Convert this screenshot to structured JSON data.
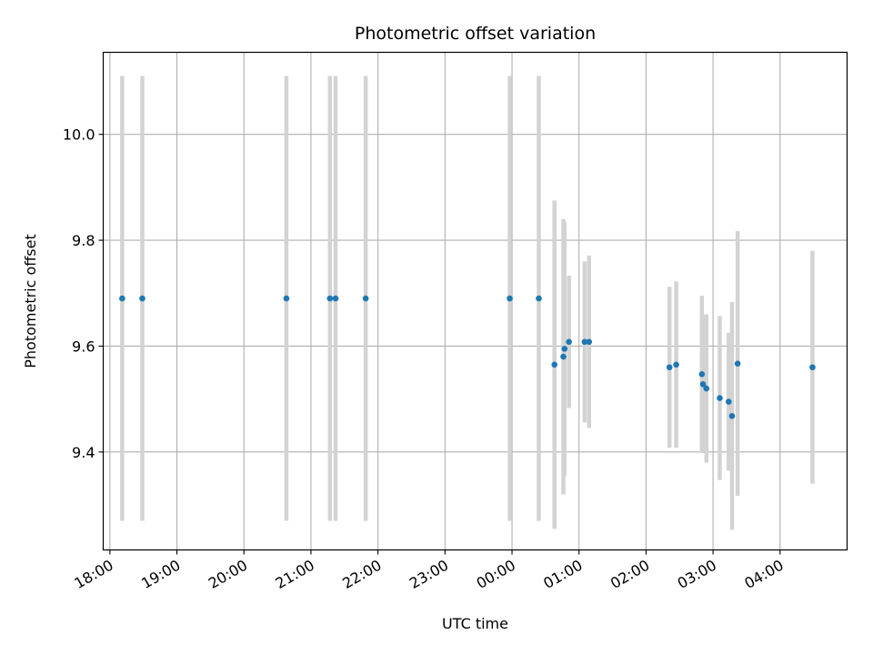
{
  "chart_data": {
    "type": "scatter",
    "title": "Photometric offset variation",
    "xlabel": "UTC time",
    "ylabel": "Photometric offset",
    "x_unit": "UTC time (HH:MM), 18:00 to 04:00 the following day",
    "xlim": [
      "17:54",
      "05:00"
    ],
    "ylim": [
      9.215,
      10.155
    ],
    "x_ticks": [
      "18:00",
      "19:00",
      "20:00",
      "21:00",
      "22:00",
      "23:00",
      "00:00",
      "01:00",
      "02:00",
      "03:00",
      "04:00"
    ],
    "y_ticks": [
      9.4,
      9.6,
      9.8,
      10.0
    ],
    "y_tick_labels": [
      "9.4",
      "9.6",
      "9.8",
      "10.0"
    ],
    "grid": true,
    "marker_color": "#1f77b4",
    "errorbar_color": "#d3d3d3",
    "points": [
      {
        "x": "18:11",
        "y": 9.69,
        "err": 0.42
      },
      {
        "x": "18:29",
        "y": 9.69,
        "err": 0.42
      },
      {
        "x": "20:38",
        "y": 9.69,
        "err": 0.42
      },
      {
        "x": "21:17",
        "y": 9.69,
        "err": 0.42
      },
      {
        "x": "21:22",
        "y": 9.69,
        "err": 0.42
      },
      {
        "x": "21:49",
        "y": 9.69,
        "err": 0.42
      },
      {
        "x": "23:58",
        "y": 9.69,
        "err": 0.42
      },
      {
        "x": "00:24",
        "y": 9.69,
        "err": 0.42
      },
      {
        "x": "00:38",
        "y": 9.565,
        "err": 0.31
      },
      {
        "x": "00:46",
        "y": 9.58,
        "err": 0.26
      },
      {
        "x": "00:47",
        "y": 9.595,
        "err": 0.24
      },
      {
        "x": "00:51",
        "y": 9.608,
        "err": 0.125
      },
      {
        "x": "01:05",
        "y": 9.608,
        "err": 0.152
      },
      {
        "x": "01:09",
        "y": 9.608,
        "err": 0.163
      },
      {
        "x": "02:21",
        "y": 9.56,
        "err": 0.152
      },
      {
        "x": "02:27",
        "y": 9.565,
        "err": 0.157
      },
      {
        "x": "02:50",
        "y": 9.547,
        "err": 0.148
      },
      {
        "x": "02:51",
        "y": 9.528,
        "err": 0.13
      },
      {
        "x": "02:54",
        "y": 9.52,
        "err": 0.14
      },
      {
        "x": "03:06",
        "y": 9.502,
        "err": 0.155
      },
      {
        "x": "03:14",
        "y": 9.495,
        "err": 0.13
      },
      {
        "x": "03:17",
        "y": 9.468,
        "err": 0.215
      },
      {
        "x": "03:22",
        "y": 9.567,
        "err": 0.25
      },
      {
        "x": "04:29",
        "y": 9.56,
        "err": 0.22
      }
    ]
  }
}
